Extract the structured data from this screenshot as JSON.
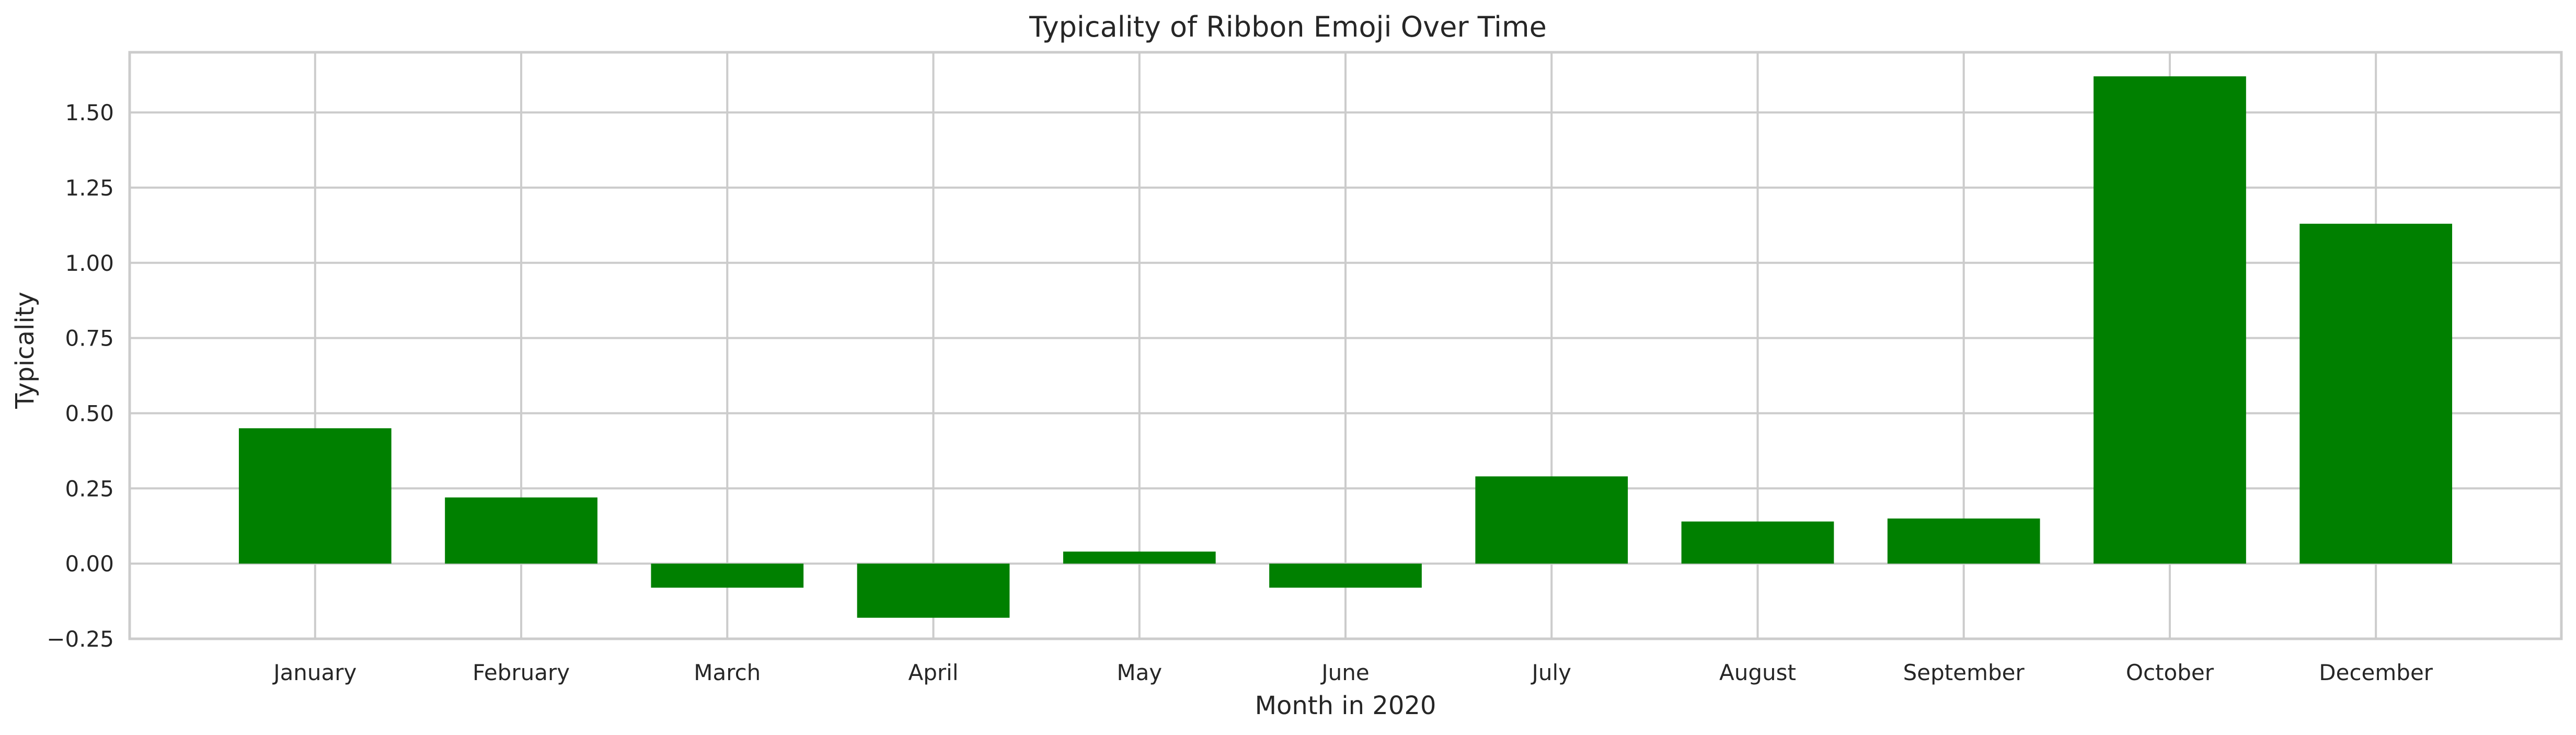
{
  "chart_data": {
    "type": "bar",
    "title": "Typicality of Ribbon Emoji Over Time",
    "xlabel": "Month in 2020",
    "ylabel": "Typicality",
    "categories": [
      "January",
      "February",
      "March",
      "April",
      "May",
      "June",
      "July",
      "August",
      "September",
      "October",
      "December"
    ],
    "values": [
      0.45,
      0.22,
      -0.08,
      -0.18,
      0.04,
      -0.08,
      0.29,
      0.14,
      0.15,
      1.62,
      1.13
    ],
    "ylim": [
      -0.25,
      1.7
    ],
    "yticks": [
      -0.25,
      0.0,
      0.25,
      0.5,
      0.75,
      1.0,
      1.25,
      1.5
    ],
    "ytick_labels": [
      "−0.25",
      "0.00",
      "0.25",
      "0.50",
      "0.75",
      "1.00",
      "1.25",
      "1.50"
    ],
    "bar_color": "#008000",
    "grid": true,
    "legend": "none"
  }
}
